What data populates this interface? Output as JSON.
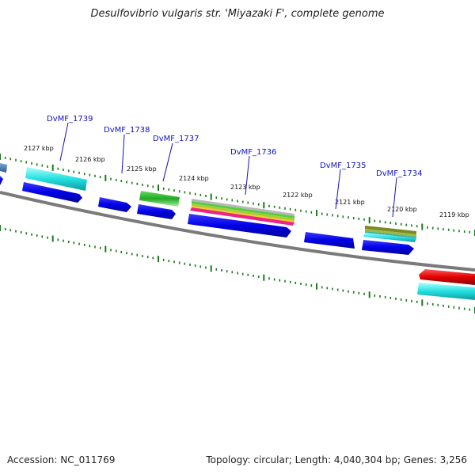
{
  "title": "Desulfovibrio vulgaris str. 'Miyazaki F', complete genome",
  "footer": {
    "accession": "Accession: NC_011769",
    "topology": "Topology: circular; Length: 4,040,304 bp; Genes: 3,256"
  },
  "scale_labels": [
    "2127 kbp",
    "2126 kbp",
    "2125 kbp",
    "2124 kbp",
    "2123 kbp",
    "2122 kbp",
    "2121 kbp",
    "2120 kbp",
    "2119 kbp"
  ],
  "gene_labels": [
    "DvMF_1739",
    "DvMF_1738",
    "DvMF_1737",
    "DvMF_1736",
    "DvMF_1735",
    "DvMF_1734"
  ],
  "colors": {
    "backbone": "#7a7a7a",
    "scale_ticks": "#1a7a1a",
    "cds_strand": "#1010e0",
    "cyan_feature": "#22dddd",
    "green_feature": "#33bb33",
    "olive_feature": "#7a8a20",
    "red_feature": "#e01010",
    "steel_feature": "#4a7ab0",
    "label_text": "#1010c8"
  }
}
